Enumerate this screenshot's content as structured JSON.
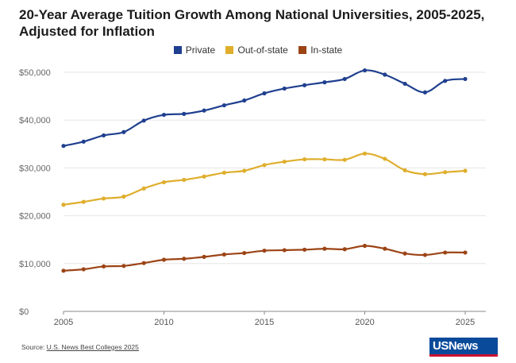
{
  "chart_data": {
    "type": "line",
    "title": "20-Year Average Tuition Growth Among National Universities, 2005-2025, Adjusted for Inflation",
    "xlabel": "",
    "ylabel": "",
    "x": [
      2005,
      2006,
      2007,
      2008,
      2009,
      2010,
      2011,
      2012,
      2013,
      2014,
      2015,
      2016,
      2017,
      2018,
      2019,
      2020,
      2021,
      2022,
      2023,
      2024,
      2025
    ],
    "xticks": [
      2005,
      2010,
      2015,
      2020,
      2025
    ],
    "xtick_labels": [
      "2005",
      "2010",
      "2015",
      "2020",
      "2025"
    ],
    "ylim": [
      0,
      50000
    ],
    "yticks": [
      0,
      10000,
      20000,
      30000,
      40000,
      50000
    ],
    "ytick_labels": [
      "$0",
      "$10,000",
      "$20,000",
      "$30,000",
      "$40,000",
      "$50,000"
    ],
    "grid": "horizontal",
    "legend_position": "top-center",
    "series": [
      {
        "name": "Private",
        "color": "#1f3f8f",
        "values": [
          34600,
          35500,
          36800,
          37500,
          39900,
          41100,
          41300,
          42000,
          43100,
          44100,
          45600,
          46600,
          47300,
          47900,
          48600,
          50400,
          49500,
          47600,
          45800,
          48200,
          48600
        ]
      },
      {
        "name": "Out-of-state",
        "color": "#dfae2c",
        "values": [
          22300,
          22900,
          23600,
          24000,
          25700,
          27000,
          27500,
          28200,
          29000,
          29400,
          30600,
          31300,
          31800,
          31800,
          31700,
          33000,
          31900,
          29500,
          28700,
          29100,
          29400
        ]
      },
      {
        "name": "In-state",
        "color": "#9c4416",
        "values": [
          8500,
          8800,
          9400,
          9500,
          10100,
          10800,
          11000,
          11400,
          11900,
          12200,
          12700,
          12800,
          12900,
          13100,
          13000,
          13700,
          13100,
          12100,
          11800,
          12300,
          12300
        ]
      }
    ]
  },
  "source": {
    "prefix": "Source: ",
    "text": "U.S. News Best Colleges 2025"
  },
  "logo": {
    "text": "USNews"
  }
}
